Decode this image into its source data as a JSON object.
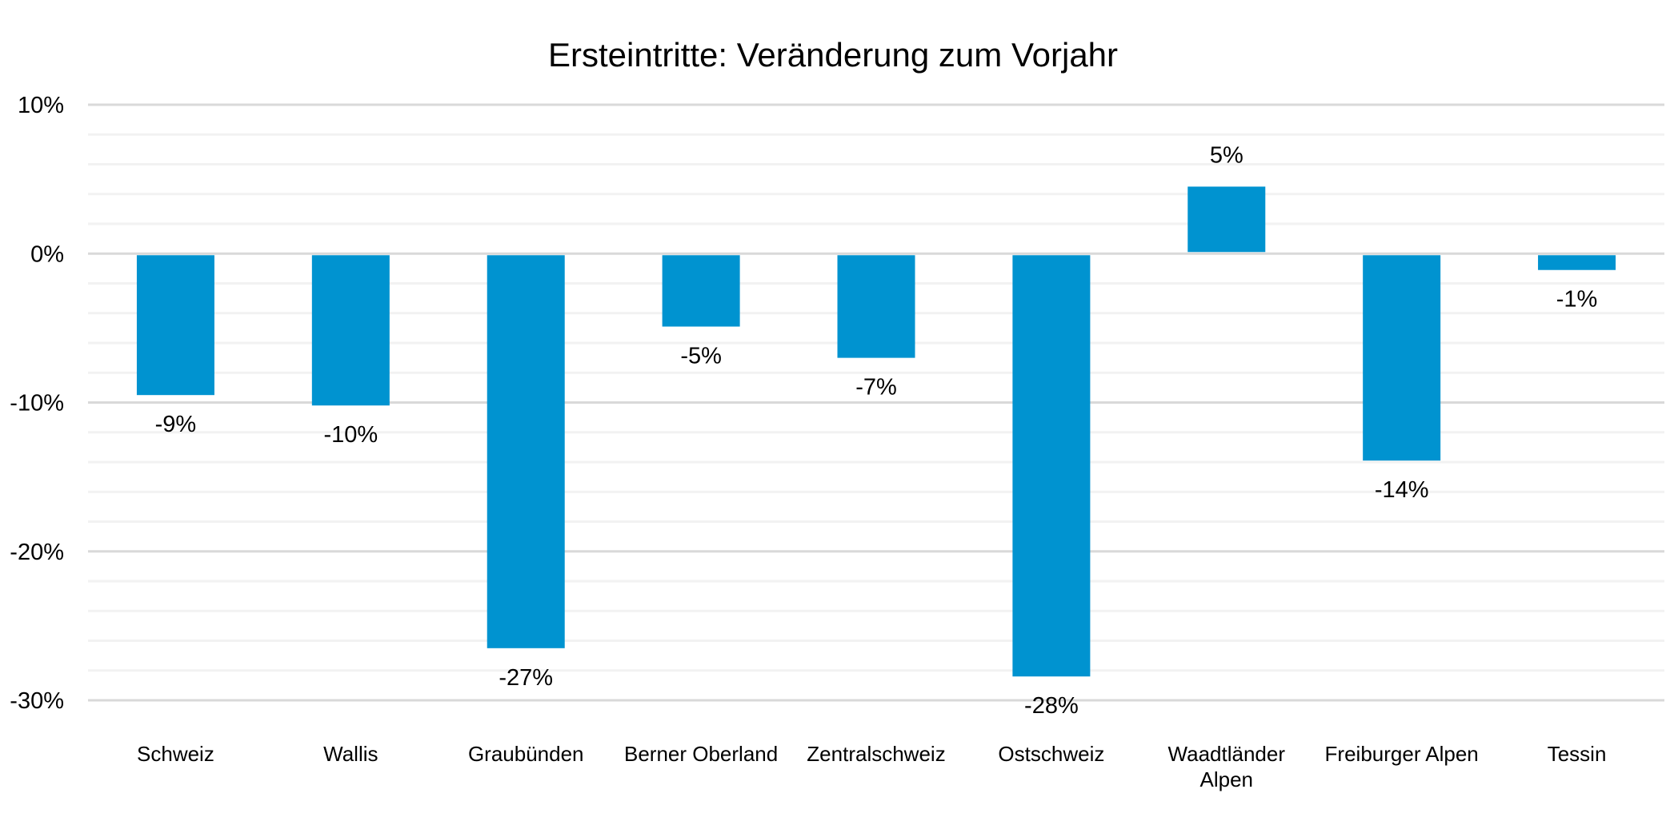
{
  "chart_data": {
    "type": "bar",
    "title": "Ersteintritte: Veränderung zum Vorjahr",
    "xlabel": "",
    "ylabel": "",
    "categories": [
      [
        "Schweiz"
      ],
      [
        "Wallis"
      ],
      [
        "Graubünden"
      ],
      [
        "Berner Oberland"
      ],
      [
        "Zentralschweiz"
      ],
      [
        "Ostschweiz"
      ],
      [
        "Waadtländer",
        "Alpen"
      ],
      [
        "Freiburger Alpen"
      ],
      [
        "Tessin"
      ]
    ],
    "values": [
      -9.5,
      -10.2,
      -26.5,
      -4.9,
      -7.0,
      -28.4,
      4.5,
      -13.9,
      -1.1
    ],
    "data_labels": [
      "-9%",
      "-10%",
      "-27%",
      "-5%",
      "-7%",
      "-28%",
      "5%",
      "-14%",
      "-1%"
    ],
    "ylim": [
      -30,
      10
    ],
    "yticks": [
      10,
      0,
      -10,
      -20,
      -30
    ],
    "ytick_labels": [
      "10%",
      "0%",
      "-10%",
      "-20%",
      "-30%"
    ],
    "minor_step": 2,
    "grid": true,
    "legend": "none",
    "colors": {
      "bar": "#0093d0",
      "major_grid": "#d9d9d9",
      "minor_grid": "#f2f2f2"
    }
  }
}
